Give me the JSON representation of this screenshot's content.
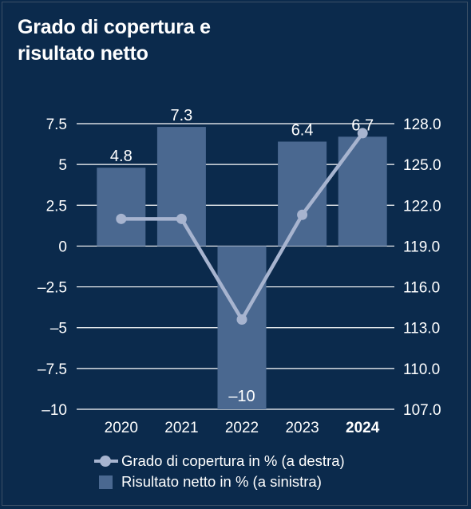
{
  "title_line1": "Grado di copertura e",
  "title_line2": "risultato netto",
  "chart_data": {
    "type": "bar+line",
    "categories": [
      "2020",
      "2021",
      "2022",
      "2023",
      "2024"
    ],
    "bold_category": "2024",
    "series": [
      {
        "name": "Risultato netto in % (a sinistra)",
        "kind": "bar",
        "axis": "left",
        "values": [
          4.8,
          7.3,
          -10,
          6.4,
          6.7
        ],
        "labels": [
          "4.8",
          "7.3",
          "–10",
          "6.4",
          "6.7"
        ]
      },
      {
        "name": "Grado di copertura in % (a destra)",
        "kind": "line",
        "axis": "right",
        "values": [
          121.0,
          121.0,
          113.6,
          121.3,
          127.3
        ]
      }
    ],
    "left_axis": {
      "ylim": [
        -10,
        7.5
      ],
      "ticks": [
        7.5,
        5,
        2.5,
        0,
        -2.5,
        -5,
        -7.5,
        -10
      ],
      "tick_labels": [
        "7.5",
        "5",
        "2.5",
        "0",
        "–2.5",
        "–5",
        "–7.5",
        "–10"
      ]
    },
    "right_axis": {
      "ylim": [
        107.0,
        128.0
      ],
      "ticks": [
        128.0,
        125.0,
        122.0,
        119.0,
        116.0,
        113.0,
        110.0,
        107.0
      ],
      "tick_labels": [
        "128.0",
        "125.0",
        "122.0",
        "119.0",
        "116.0",
        "113.0",
        "110.0",
        "107.0"
      ]
    },
    "grid": true,
    "legend_position": "bottom",
    "colors": {
      "background": "#0b2a4c",
      "bar": "#4a6890",
      "line": "#a7b4cf",
      "grid": "#ffffff"
    }
  }
}
